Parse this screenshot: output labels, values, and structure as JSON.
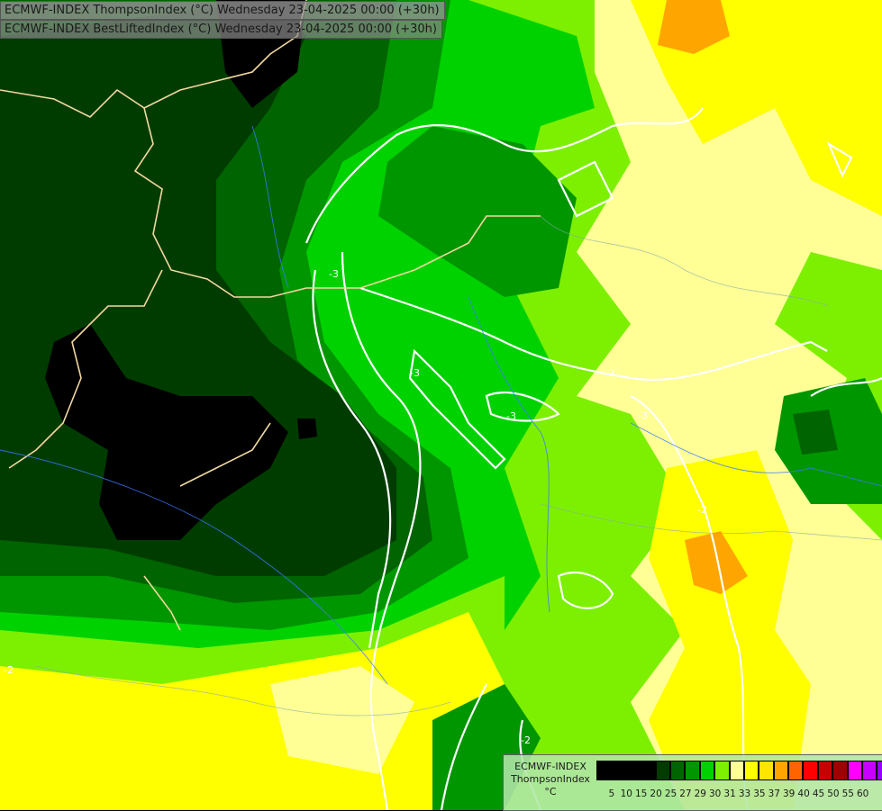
{
  "map": {
    "field_colors": {
      "c5": "#000000",
      "c20": "#003c00",
      "c25": "#006400",
      "c27": "#009600",
      "c29": "#00d200",
      "c30": "#7cf000",
      "c31": "#ffff00",
      "c33": "#ffff96",
      "c37": "#ffa500"
    },
    "contour_color": "#ffffff",
    "contour_labels": [
      "-3",
      "-3",
      "-3",
      "-2",
      "-2",
      "-2",
      "-3",
      "-2"
    ],
    "border_color": "#f2d8a0",
    "river_color": "#3c78ff"
  },
  "header": {
    "line1": "ECMWF-INDEX ThompsonIndex (°C) Wednesday 23-04-2025 00:00 (+30h)",
    "line2": "ECMWF-INDEX BestLiftedIndex (°C) Wednesday 23-04-2025 00:00 (+30h)"
  },
  "legend": {
    "title_line1": "ECMWF-INDEX",
    "title_line2": "ThompsonIndex",
    "unit": "°C",
    "swatch_colors": [
      "#000000",
      "#000000",
      "#000000",
      "#000000",
      "#003c00",
      "#006400",
      "#009600",
      "#00d200",
      "#7cf000",
      "#ffff96",
      "#ffff00",
      "#ffe600",
      "#ffa500",
      "#ff6400",
      "#ff0000",
      "#c80000",
      "#a00000",
      "#ff00ff",
      "#c800ff",
      "#9600ff",
      "#6400ff",
      "#0000ff"
    ],
    "tick_labels": [
      "5",
      "10",
      "15",
      "20",
      "25",
      "27",
      "29",
      "30",
      "31",
      "33",
      "35",
      "37",
      "39",
      "40",
      "45",
      "50",
      "55",
      "60"
    ]
  }
}
